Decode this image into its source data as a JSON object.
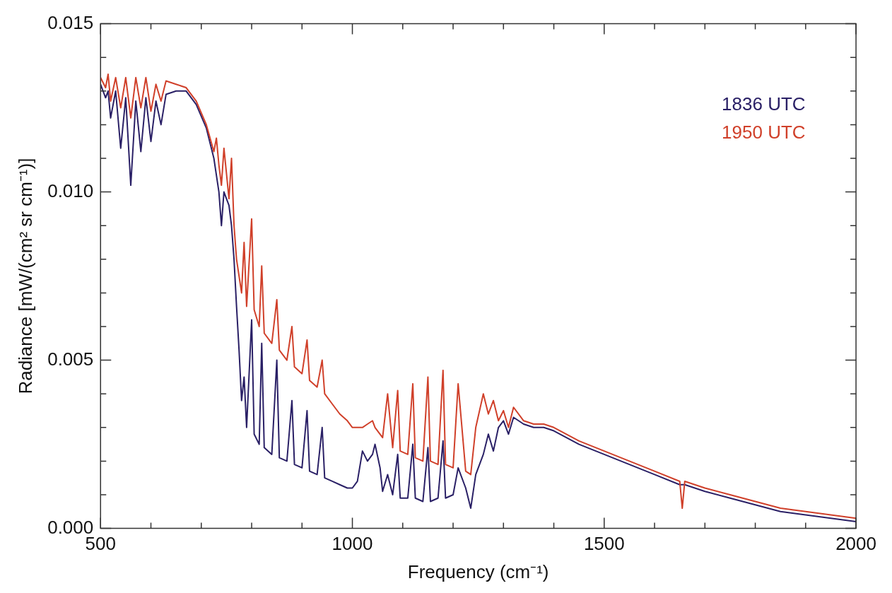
{
  "chart_data": {
    "type": "line",
    "xlabel": "Frequency (cm⁻¹)",
    "ylabel": "Radiance [mW/(cm² sr cm⁻¹)]",
    "x": [
      500,
      510,
      515,
      520,
      530,
      540,
      550,
      560,
      570,
      580,
      590,
      600,
      610,
      620,
      630,
      650,
      670,
      690,
      710,
      725,
      730,
      735,
      740,
      745,
      755,
      760,
      765,
      770,
      775,
      780,
      785,
      790,
      800,
      805,
      815,
      820,
      825,
      840,
      850,
      855,
      870,
      880,
      885,
      900,
      910,
      915,
      930,
      940,
      945,
      960,
      975,
      990,
      1000,
      1010,
      1020,
      1030,
      1040,
      1045,
      1055,
      1060,
      1070,
      1080,
      1090,
      1095,
      1110,
      1120,
      1125,
      1140,
      1150,
      1155,
      1170,
      1180,
      1185,
      1200,
      1210,
      1225,
      1235,
      1245,
      1260,
      1270,
      1280,
      1290,
      1300,
      1310,
      1320,
      1340,
      1360,
      1380,
      1400,
      1450,
      1500,
      1550,
      1600,
      1650,
      1655,
      1660,
      1700,
      1750,
      1800,
      1850,
      1900,
      1950,
      2000
    ],
    "series": [
      {
        "name": "1836 UTC",
        "color": "#2a2066",
        "values": [
          0.0132,
          0.0128,
          0.013,
          0.0122,
          0.013,
          0.0113,
          0.0128,
          0.0102,
          0.0127,
          0.0112,
          0.0128,
          0.0115,
          0.0127,
          0.012,
          0.0129,
          0.013,
          0.013,
          0.0126,
          0.0119,
          0.011,
          0.0105,
          0.01,
          0.009,
          0.01,
          0.0096,
          0.009,
          0.008,
          0.0066,
          0.0053,
          0.0038,
          0.0045,
          0.003,
          0.0062,
          0.0028,
          0.0025,
          0.0055,
          0.0024,
          0.0022,
          0.005,
          0.0021,
          0.002,
          0.0038,
          0.0019,
          0.0018,
          0.0035,
          0.0017,
          0.0016,
          0.003,
          0.0015,
          0.0014,
          0.0013,
          0.0012,
          0.0012,
          0.0014,
          0.0023,
          0.002,
          0.0022,
          0.0025,
          0.0018,
          0.0011,
          0.0016,
          0.001,
          0.0022,
          0.0009,
          0.0009,
          0.0025,
          0.0009,
          0.0008,
          0.0024,
          0.0008,
          0.0009,
          0.0026,
          0.0009,
          0.001,
          0.0018,
          0.0012,
          0.0006,
          0.0016,
          0.0022,
          0.0028,
          0.0023,
          0.003,
          0.0032,
          0.0028,
          0.0033,
          0.0031,
          0.003,
          0.003,
          0.0029,
          0.0025,
          0.0022,
          0.0019,
          0.0016,
          0.0013,
          0.0013,
          0.0013,
          0.0011,
          0.0009,
          0.0007,
          0.0005,
          0.0004,
          0.0003,
          0.0002
        ]
      },
      {
        "name": "1950 UTC",
        "color": "#d0402a",
        "values": [
          0.0134,
          0.0131,
          0.0135,
          0.0127,
          0.0134,
          0.0125,
          0.0134,
          0.0122,
          0.0134,
          0.0125,
          0.0134,
          0.0124,
          0.0132,
          0.0127,
          0.0133,
          0.0132,
          0.0131,
          0.0127,
          0.012,
          0.0112,
          0.0116,
          0.0108,
          0.0102,
          0.0113,
          0.0098,
          0.011,
          0.009,
          0.008,
          0.0075,
          0.007,
          0.0085,
          0.0066,
          0.0092,
          0.0065,
          0.006,
          0.0078,
          0.0058,
          0.0055,
          0.0068,
          0.0053,
          0.005,
          0.006,
          0.0048,
          0.0046,
          0.0056,
          0.0044,
          0.0042,
          0.005,
          0.004,
          0.0037,
          0.0034,
          0.0032,
          0.003,
          0.003,
          0.003,
          0.0031,
          0.0032,
          0.003,
          0.0028,
          0.0027,
          0.004,
          0.0024,
          0.0041,
          0.0023,
          0.0022,
          0.0043,
          0.0021,
          0.002,
          0.0045,
          0.002,
          0.0019,
          0.0047,
          0.0019,
          0.0018,
          0.0043,
          0.0017,
          0.0016,
          0.003,
          0.004,
          0.0034,
          0.0038,
          0.0032,
          0.0035,
          0.003,
          0.0036,
          0.0032,
          0.0031,
          0.0031,
          0.003,
          0.0026,
          0.0023,
          0.002,
          0.0017,
          0.0014,
          0.0006,
          0.0014,
          0.0012,
          0.001,
          0.0008,
          0.0006,
          0.0005,
          0.0004,
          0.0003
        ]
      }
    ],
    "xlim": [
      500,
      2000
    ],
    "xticks": [
      500,
      {
        "value": 600,
        "label": null
      },
      {
        "value": 700,
        "label": null
      },
      {
        "value": 800,
        "label": null
      },
      {
        "value": 900,
        "label": null
      },
      1000,
      {
        "value": 1100,
        "label": null
      },
      {
        "value": 1200,
        "label": null
      },
      {
        "value": 1300,
        "label": null
      },
      {
        "value": 1400,
        "label": null
      },
      1500,
      {
        "value": 1600,
        "label": null
      },
      {
        "value": 1700,
        "label": null
      },
      {
        "value": 1800,
        "label": null
      },
      {
        "value": 1900,
        "label": null
      },
      2000
    ],
    "ylim": [
      0,
      0.015
    ],
    "yticks": [
      {
        "value": 0,
        "label": "0.000"
      },
      {
        "value": 0.001,
        "label": null
      },
      {
        "value": 0.002,
        "label": null
      },
      {
        "value": 0.003,
        "label": null
      },
      {
        "value": 0.004,
        "label": null
      },
      {
        "value": 0.005,
        "label": "0.005"
      },
      {
        "value": 0.006,
        "label": null
      },
      {
        "value": 0.007,
        "label": null
      },
      {
        "value": 0.008,
        "label": null
      },
      {
        "value": 0.009,
        "label": null
      },
      {
        "value": 0.01,
        "label": "0.010"
      },
      {
        "value": 0.011,
        "label": null
      },
      {
        "value": 0.012,
        "label": null
      },
      {
        "value": 0.013,
        "label": null
      },
      {
        "value": 0.014,
        "label": null
      },
      {
        "value": 0.015,
        "label": "0.015"
      }
    ],
    "grid": false,
    "legend": "top right",
    "marker": "none",
    "line_style": "solid"
  }
}
